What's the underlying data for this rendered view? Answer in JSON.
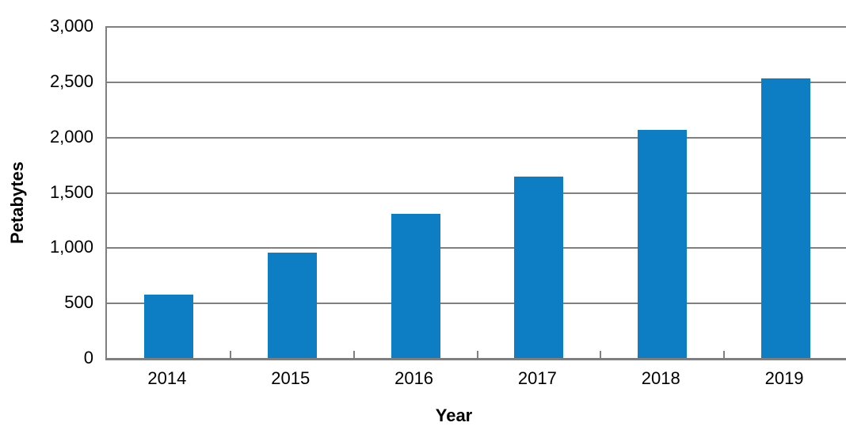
{
  "chart_data": {
    "type": "bar",
    "title": "",
    "categories": [
      "2014",
      "2015",
      "2016",
      "2017",
      "2018",
      "2019"
    ],
    "values": [
      570,
      950,
      1300,
      1640,
      2060,
      2530
    ],
    "xlabel": "Year",
    "ylabel": "Petabytes",
    "ylim": [
      0,
      3000
    ],
    "ytick_step": 500,
    "ytick_labels": [
      "0",
      "500",
      "1,000",
      "1,500",
      "2,000",
      "2,500",
      "3,000"
    ],
    "grid": "horizontal-on",
    "legend": "none",
    "colors": {
      "bar": "#0d7ec4",
      "gridline": "#808080",
      "axis": "#7f7f7f",
      "text": "#000000",
      "background": "#ffffff"
    }
  }
}
